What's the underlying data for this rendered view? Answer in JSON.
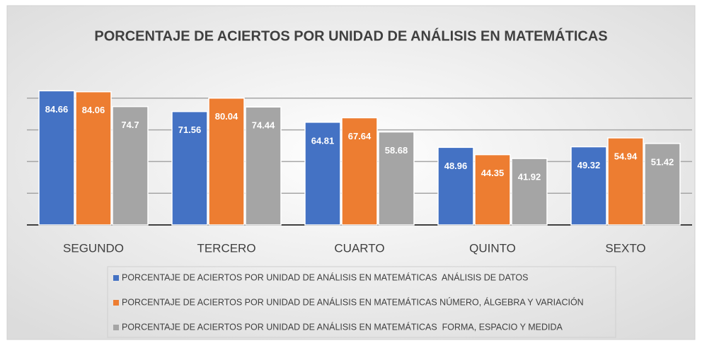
{
  "chart_data": {
    "type": "bar",
    "title": "PORCENTAJE DE ACIERTOS POR UNIDAD DE ANÁLISIS EN MATEMÁTICAS",
    "categories": [
      "SEGUNDO",
      "TERCERO",
      "CUARTO",
      "QUINTO",
      "SEXTO"
    ],
    "series": [
      {
        "name": "PORCENTAJE DE ACIERTOS POR UNIDAD DE ANÁLISIS EN MATEMÁTICAS  ANÁLISIS DE DATOS",
        "color": "#4472c4",
        "values": [
          84.66,
          71.56,
          64.81,
          48.96,
          49.32
        ]
      },
      {
        "name": "PORCENTAJE DE ACIERTOS POR UNIDAD DE ANÁLISIS EN MATEMÁTICAS NÚMERO, ÁLGEBRA Y VARIACIÓN",
        "color": "#ed7d31",
        "values": [
          84.06,
          80.04,
          67.64,
          44.35,
          54.94
        ]
      },
      {
        "name": "PORCENTAJE DE ACIERTOS POR UNIDAD DE ANÁLISIS EN MATEMÁTICAS  FORMA, ESPACIO Y MEDIDA",
        "color": "#a5a5a5",
        "values": [
          74.7,
          74.44,
          58.68,
          41.92,
          51.42
        ]
      }
    ],
    "ylim": [
      0,
      100
    ],
    "yticks": [
      0,
      20,
      40,
      60,
      80
    ],
    "grid": true
  }
}
